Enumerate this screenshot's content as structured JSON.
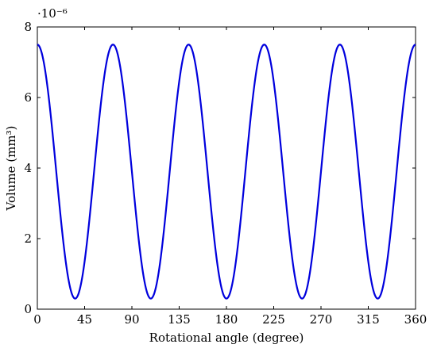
{
  "chart_data": {
    "type": "line",
    "xlabel": "Rotational angle (degree)",
    "ylabel": "Volume (mm³)",
    "y_multiplier": "·10⁻⁶",
    "xlim": [
      0,
      360
    ],
    "ylim": [
      0,
      8
    ],
    "x_ticks": [
      0,
      45,
      90,
      135,
      180,
      225,
      270,
      315,
      360
    ],
    "y_ticks": [
      0,
      2,
      4,
      6,
      8
    ],
    "grid": false,
    "series": [
      {
        "color": "#0000dd",
        "x": [
          0,
          36,
          72,
          108,
          144,
          180,
          216,
          252,
          288,
          324,
          360
        ],
        "y": [
          7.5,
          0.3,
          7.5,
          0.3,
          7.5,
          0.3,
          7.5,
          0.3,
          7.5,
          0.3,
          7.5
        ],
        "shape": "cosine",
        "period_deg": 72
      }
    ]
  }
}
